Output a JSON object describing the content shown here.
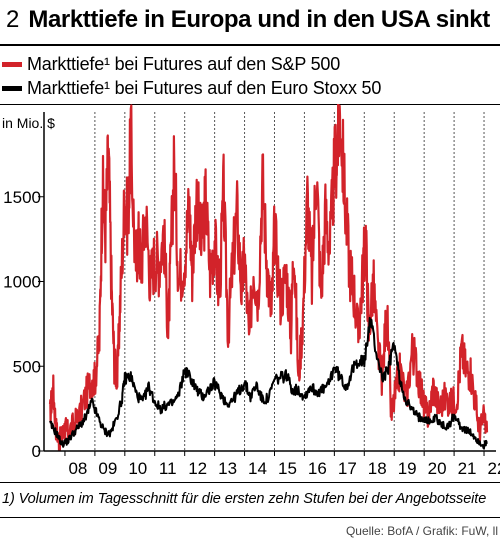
{
  "header": {
    "number": "2",
    "title": "Markttiefe in Europa und in den USA sinkt"
  },
  "legend": {
    "items": [
      {
        "label": "Markttiefe¹ bei Futures auf den S&P 500",
        "color": "#d2232a"
      },
      {
        "label": "Markttiefe¹ bei Futures auf den Euro Stoxx 50",
        "color": "#000000"
      }
    ]
  },
  "footnote": "1) Volumen im Tagesschnitt für die ersten zehn Stufen bei der Angebotsseite",
  "source": "Quelle: BofA / Grafik: FuW, ll",
  "chart_data": {
    "type": "line",
    "title": "Markttiefe in Europa und in den USA sinkt",
    "ylabel": "in Mio. $",
    "ylim": [
      0,
      2000
    ],
    "xlim": [
      2007.3,
      2022.4
    ],
    "yticks": [
      0,
      500,
      1000,
      1500
    ],
    "xtick_labels": [
      "08",
      "09",
      "10",
      "11",
      "12",
      "13",
      "14",
      "15",
      "16",
      "17",
      "18",
      "19",
      "20",
      "21",
      "22"
    ],
    "xtick_years": [
      2008,
      2009,
      2010,
      2011,
      2012,
      2013,
      2014,
      2015,
      2016,
      2017,
      2018,
      2019,
      2020,
      2021,
      2022
    ],
    "grid": "vertical dashed",
    "series": [
      {
        "name": "Markttiefe¹ bei Futures auf den S&P 500",
        "color": "#d2232a",
        "x": [
          2007.5,
          2007.6,
          2007.7,
          2007.8,
          2007.9,
          2008.0,
          2008.1,
          2008.3,
          2008.5,
          2008.7,
          2008.9,
          2009.0,
          2009.15,
          2009.25,
          2009.35,
          2009.45,
          2009.55,
          2009.65,
          2009.75,
          2009.85,
          2010.0,
          2010.1,
          2010.2,
          2010.35,
          2010.45,
          2010.55,
          2010.7,
          2010.85,
          2011.0,
          2011.15,
          2011.3,
          2011.45,
          2011.55,
          2011.65,
          2011.8,
          2012.0,
          2012.15,
          2012.25,
          2012.4,
          2012.55,
          2012.7,
          2012.85,
          2013.0,
          2013.15,
          2013.3,
          2013.45,
          2013.6,
          2013.75,
          2013.9,
          2014.0,
          2014.15,
          2014.3,
          2014.45,
          2014.6,
          2014.75,
          2014.9,
          2015.0,
          2015.2,
          2015.4,
          2015.55,
          2015.65,
          2015.8,
          2015.95,
          2016.1,
          2016.25,
          2016.4,
          2016.55,
          2016.7,
          2016.85,
          2017.0,
          2017.1,
          2017.2,
          2017.35,
          2017.5,
          2017.65,
          2017.8,
          2017.95,
          2018.05,
          2018.15,
          2018.3,
          2018.45,
          2018.6,
          2018.75,
          2018.9,
          2019.05,
          2019.2,
          2019.4,
          2019.6,
          2019.75,
          2019.9,
          2020.0,
          2020.15,
          2020.3,
          2020.5,
          2020.7,
          2020.9,
          2021.1,
          2021.25,
          2021.4,
          2021.55,
          2021.7,
          2021.85,
          2022.0,
          2022.1
        ],
        "values": [
          210,
          380,
          140,
          60,
          90,
          140,
          110,
          160,
          220,
          330,
          430,
          420,
          650,
          1560,
          1300,
          1780,
          1000,
          520,
          430,
          900,
          1500,
          1350,
          1850,
          1100,
          1250,
          1100,
          1400,
          1000,
          1150,
          1100,
          1300,
          700,
          1200,
          1700,
          1000,
          1150,
          1450,
          1050,
          1500,
          1200,
          1480,
          1050,
          1250,
          900,
          1520,
          700,
          1100,
          1400,
          950,
          1150,
          650,
          1100,
          900,
          1600,
          1100,
          800,
          1300,
          900,
          1050,
          700,
          1260,
          420,
          800,
          1500,
          1000,
          1700,
          900,
          1400,
          1200,
          1650,
          1800,
          2000,
          1500,
          1100,
          950,
          680,
          1050,
          1250,
          700,
          1000,
          600,
          420,
          850,
          200,
          350,
          480,
          300,
          600,
          500,
          350,
          260,
          200,
          380,
          250,
          320,
          280,
          320,
          600,
          480,
          470,
          300,
          120,
          200,
          110
        ]
      },
      {
        "name": "Markttiefe¹ bei Futures auf den Euro Stoxx 50",
        "color": "#000000",
        "x": [
          2007.5,
          2007.7,
          2007.9,
          2008.1,
          2008.3,
          2008.5,
          2008.7,
          2008.9,
          2009.1,
          2009.3,
          2009.5,
          2009.7,
          2009.9,
          2010.0,
          2010.2,
          2010.4,
          2010.6,
          2010.8,
          2011.0,
          2011.2,
          2011.4,
          2011.6,
          2011.8,
          2012.0,
          2012.2,
          2012.4,
          2012.6,
          2012.8,
          2013.0,
          2013.2,
          2013.4,
          2013.6,
          2013.8,
          2014.0,
          2014.2,
          2014.4,
          2014.6,
          2014.8,
          2015.0,
          2015.2,
          2015.4,
          2015.6,
          2015.8,
          2016.0,
          2016.2,
          2016.4,
          2016.6,
          2016.8,
          2017.0,
          2017.2,
          2017.4,
          2017.6,
          2017.8,
          2018.0,
          2018.2,
          2018.4,
          2018.6,
          2018.8,
          2019.0,
          2019.2,
          2019.4,
          2019.6,
          2019.8,
          2020.0,
          2020.2,
          2020.4,
          2020.6,
          2020.8,
          2021.0,
          2021.2,
          2021.4,
          2021.6,
          2021.8,
          2022.0,
          2022.1
        ],
        "values": [
          160,
          110,
          40,
          60,
          110,
          150,
          200,
          290,
          200,
          120,
          100,
          180,
          300,
          430,
          440,
          330,
          290,
          380,
          290,
          250,
          270,
          280,
          330,
          480,
          430,
          360,
          320,
          360,
          400,
          340,
          280,
          300,
          350,
          400,
          320,
          390,
          300,
          310,
          420,
          430,
          450,
          360,
          360,
          320,
          380,
          350,
          360,
          390,
          500,
          430,
          380,
          470,
          540,
          520,
          780,
          580,
          430,
          480,
          640,
          400,
          300,
          240,
          200,
          200,
          170,
          200,
          150,
          140,
          210,
          150,
          120,
          100,
          60,
          30,
          50
        ]
      }
    ]
  }
}
